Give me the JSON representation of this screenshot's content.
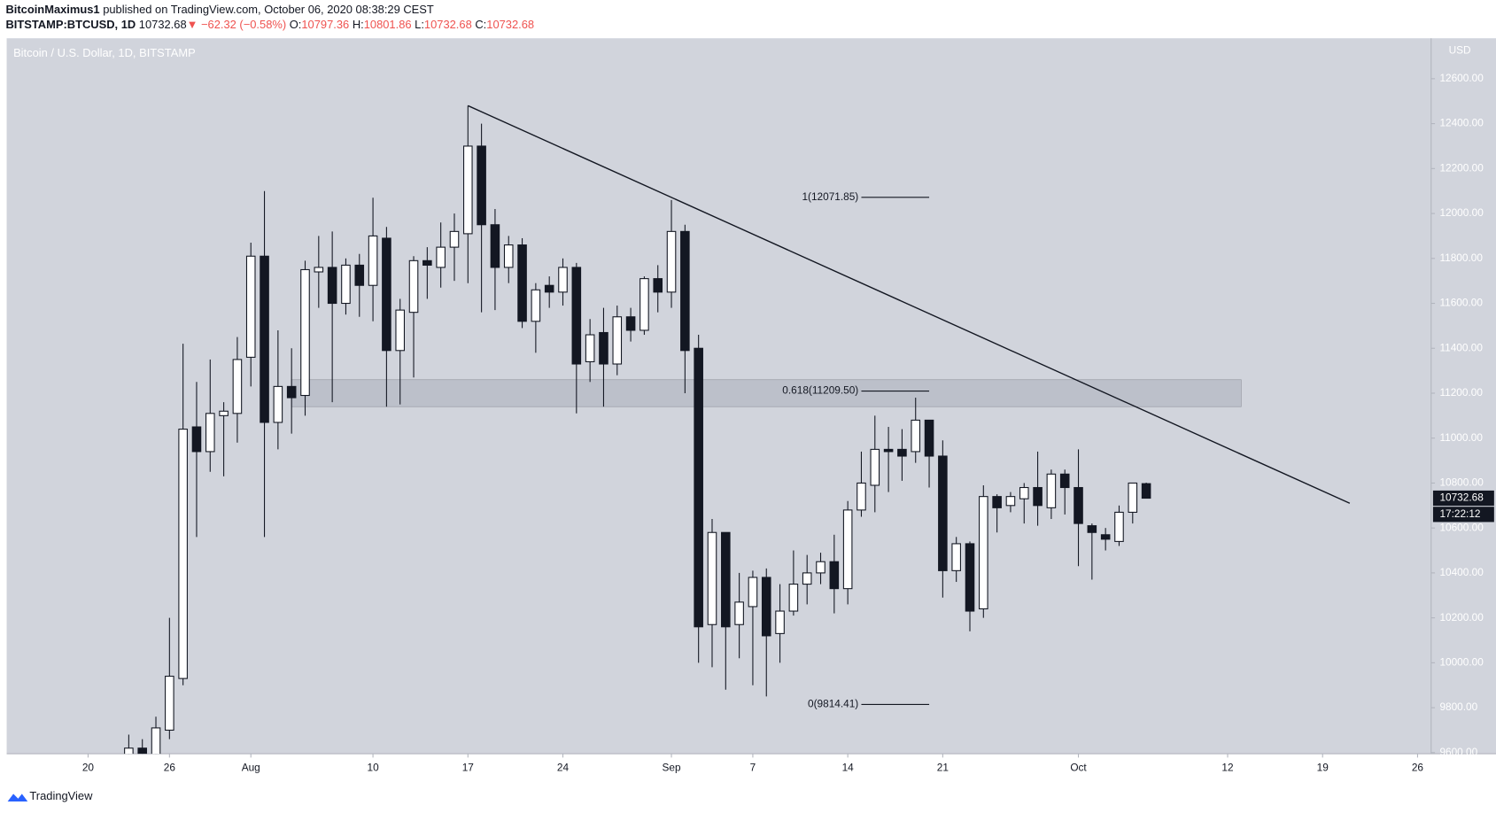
{
  "header": {
    "author": "BitcoinMaximus1",
    "published": "published on TradingView.com, October 06, 2020 08:38:29 CEST",
    "symbol": "BITSTAMP:BTCUSD, 1D",
    "price": "10732.68",
    "change": "▼ −62.32 (−0.58%)",
    "ohlc": [
      {
        "label": "O:",
        "value": "10797.36"
      },
      {
        "label": "H:",
        "value": "10801.86"
      },
      {
        "label": "L:",
        "value": "10732.68"
      },
      {
        "label": "C:",
        "value": "10732.68"
      }
    ]
  },
  "chart_data": {
    "type": "candlestick",
    "legend": "Bitcoin / U.S. Dollar, 1D, BITSTAMP",
    "y_axis_label": "USD",
    "x": [
      "2020-07-23",
      "2020-07-24",
      "2020-07-25",
      "2020-07-26",
      "2020-07-27",
      "2020-07-28",
      "2020-07-29",
      "2020-07-30",
      "2020-07-31",
      "2020-08-01",
      "2020-08-02",
      "2020-08-03",
      "2020-08-04",
      "2020-08-05",
      "2020-08-06",
      "2020-08-07",
      "2020-08-08",
      "2020-08-09",
      "2020-08-10",
      "2020-08-11",
      "2020-08-12",
      "2020-08-13",
      "2020-08-14",
      "2020-08-15",
      "2020-08-16",
      "2020-08-17",
      "2020-08-18",
      "2020-08-19",
      "2020-08-20",
      "2020-08-21",
      "2020-08-22",
      "2020-08-23",
      "2020-08-24",
      "2020-08-25",
      "2020-08-26",
      "2020-08-27",
      "2020-08-28",
      "2020-08-29",
      "2020-08-30",
      "2020-08-31",
      "2020-09-01",
      "2020-09-02",
      "2020-09-03",
      "2020-09-04",
      "2020-09-05",
      "2020-09-06",
      "2020-09-07",
      "2020-09-08",
      "2020-09-09",
      "2020-09-10",
      "2020-09-11",
      "2020-09-12",
      "2020-09-13",
      "2020-09-14",
      "2020-09-15",
      "2020-09-16",
      "2020-09-17",
      "2020-09-18",
      "2020-09-19",
      "2020-09-20",
      "2020-09-21",
      "2020-09-22",
      "2020-09-23",
      "2020-09-24",
      "2020-09-25",
      "2020-09-26",
      "2020-09-27",
      "2020-09-28",
      "2020-09-29",
      "2020-09-30",
      "2020-10-01",
      "2020-10-02",
      "2020-10-03",
      "2020-10-04",
      "2020-10-05",
      "2020-10-06"
    ],
    "open": [
      9530,
      9620,
      9540,
      9700,
      9930,
      11050,
      10940,
      11100,
      11110,
      11360,
      11810,
      11070,
      11230,
      11190,
      11740,
      11760,
      11600,
      11770,
      11680,
      11890,
      11390,
      11560,
      11790,
      11760,
      11850,
      11910,
      12300,
      11950,
      11760,
      11860,
      11520,
      11680,
      11650,
      11760,
      11340,
      11470,
      11330,
      11540,
      11480,
      11710,
      11650,
      11920,
      11400,
      10170,
      10580,
      10170,
      10250,
      10380,
      10130,
      10230,
      10350,
      10400,
      10450,
      10330,
      10680,
      10790,
      10950,
      10950,
      10940,
      11080,
      10920,
      10410,
      10530,
      10240,
      10740,
      10700,
      10730,
      10780,
      10690,
      10840,
      10780,
      10610,
      10570,
      10540,
      10670,
      10797.36
    ],
    "high": [
      9680,
      9660,
      9760,
      10200,
      11420,
      11250,
      11350,
      11160,
      11450,
      11870,
      12100,
      11480,
      11400,
      11790,
      11900,
      11920,
      11800,
      11820,
      12070,
      11940,
      11620,
      11810,
      11850,
      11960,
      12000,
      12480,
      12400,
      12020,
      11900,
      11890,
      11690,
      11720,
      11800,
      11780,
      11530,
      11580,
      11590,
      11580,
      11720,
      11770,
      12060,
      11950,
      11460,
      10640,
      10580,
      10400,
      10410,
      10420,
      10350,
      10500,
      10480,
      10490,
      10570,
      10720,
      10940,
      11100,
      11050,
      11040,
      11180,
      11080,
      10990,
      10560,
      10540,
      10790,
      10750,
      10760,
      10800,
      10940,
      10860,
      10860,
      10950,
      10620,
      10600,
      10700,
      10800,
      10801.86
    ],
    "low": [
      9480,
      9500,
      9500,
      9660,
      9900,
      10560,
      10850,
      10830,
      10980,
      11230,
      10560,
      10950,
      11020,
      11100,
      11580,
      11160,
      11550,
      11540,
      11520,
      11140,
      11150,
      11270,
      11620,
      11670,
      11700,
      11690,
      11560,
      11570,
      11690,
      11490,
      11380,
      11580,
      11590,
      11110,
      11250,
      11140,
      11280,
      11430,
      11460,
      11560,
      11580,
      11200,
      10000,
      9980,
      9880,
      10020,
      9900,
      9850,
      10000,
      10210,
      10260,
      10350,
      10220,
      10260,
      10650,
      10670,
      10760,
      10810,
      10890,
      10780,
      10290,
      10360,
      10140,
      10200,
      10580,
      10670,
      10620,
      10610,
      10640,
      10660,
      10430,
      10370,
      10500,
      10520,
      10620,
      10732.68
    ],
    "close": [
      9620,
      9540,
      9710,
      9940,
      11040,
      10940,
      11110,
      11120,
      11350,
      11810,
      11070,
      11230,
      11180,
      11750,
      11760,
      11600,
      11770,
      11680,
      11900,
      11390,
      11570,
      11790,
      11770,
      11850,
      11920,
      12300,
      11950,
      11760,
      11860,
      11520,
      11660,
      11650,
      11760,
      11330,
      11460,
      11330,
      11540,
      11480,
      11710,
      11650,
      11920,
      11390,
      10160,
      10580,
      10160,
      10270,
      10380,
      10120,
      10230,
      10350,
      10400,
      10450,
      10330,
      10680,
      10800,
      10950,
      10940,
      10920,
      11080,
      10920,
      10410,
      10530,
      10230,
      10740,
      10690,
      10740,
      10780,
      10700,
      10840,
      10780,
      10620,
      10580,
      10550,
      10670,
      10800,
      10732.68
    ],
    "up_color": "#ffffff",
    "down_color": "#131722",
    "xlim": [
      "2020-07-14",
      "2020-10-27"
    ],
    "xticks": [
      {
        "value": "2020-07-20",
        "label": "20"
      },
      {
        "value": "2020-07-26",
        "label": "26"
      },
      {
        "value": "2020-08-01",
        "label": "Aug"
      },
      {
        "value": "2020-08-10",
        "label": "10"
      },
      {
        "value": "2020-08-17",
        "label": "17"
      },
      {
        "value": "2020-08-24",
        "label": "24"
      },
      {
        "value": "2020-09-01",
        "label": "Sep"
      },
      {
        "value": "2020-09-07",
        "label": "7"
      },
      {
        "value": "2020-09-14",
        "label": "14"
      },
      {
        "value": "2020-09-21",
        "label": "21"
      },
      {
        "value": "2020-10-01",
        "label": "Oct"
      },
      {
        "value": "2020-10-12",
        "label": "12"
      },
      {
        "value": "2020-10-19",
        "label": "19"
      },
      {
        "value": "2020-10-26",
        "label": "26"
      }
    ],
    "ylim": [
      9595,
      12780
    ],
    "yticks": [
      {
        "value": 9600,
        "label": "9600.00"
      },
      {
        "value": 9800,
        "label": "9800.00"
      },
      {
        "value": 10000,
        "label": "10000.00"
      },
      {
        "value": 10200,
        "label": "10200.00"
      },
      {
        "value": 10400,
        "label": "10400.00"
      },
      {
        "value": 10600,
        "label": "10600.00"
      },
      {
        "value": 10800,
        "label": "10800.00"
      },
      {
        "value": 11000,
        "label": "11000.00"
      },
      {
        "value": 11200,
        "label": "11200.00"
      },
      {
        "value": 11400,
        "label": "11400.00"
      },
      {
        "value": 11600,
        "label": "11600.00"
      },
      {
        "value": 11800,
        "label": "11800.00"
      },
      {
        "value": 12000,
        "label": "12000.00"
      },
      {
        "value": 12200,
        "label": "12200.00"
      },
      {
        "value": 12400,
        "label": "12400.00"
      },
      {
        "value": 12600,
        "label": "12600.00"
      }
    ],
    "grid": false,
    "last_price": 10732.68,
    "countdown": "17:22:12",
    "trendline": {
      "x": [
        "2020-08-17",
        "2020-10-21"
      ],
      "y": [
        12480,
        10710
      ]
    },
    "zone": {
      "x": [
        "2020-08-04",
        "2020-10-13"
      ],
      "y": [
        11260,
        11140
      ]
    },
    "fib": {
      "x": [
        "2020-09-15",
        "2020-09-20"
      ],
      "levels": [
        {
          "value": 12071.85,
          "label": "1(12071.85)"
        },
        {
          "value": 11209.5,
          "label": "0.618(11209.50)"
        },
        {
          "value": 9814.41,
          "label": "0(9814.41)"
        }
      ]
    }
  },
  "footer": {
    "brand": "TradingView"
  }
}
